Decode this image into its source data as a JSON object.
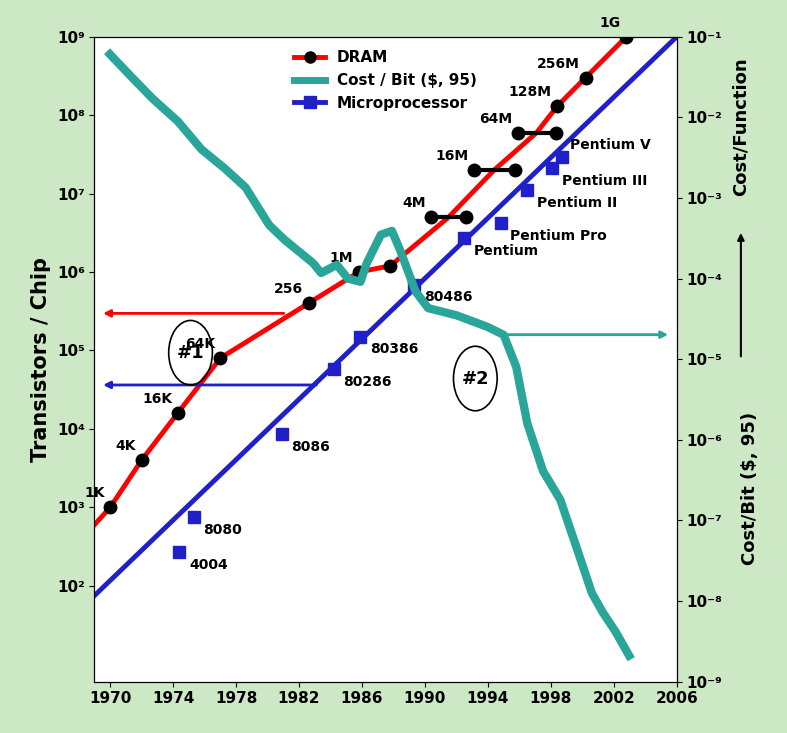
{
  "chart_data": {
    "type": "line",
    "log": "y",
    "grid": false,
    "legend": "upper center",
    "xlim": [
      1969,
      2006
    ],
    "xticks": [
      1970,
      1974,
      1978,
      1982,
      1986,
      1990,
      1994,
      1998,
      2002,
      2006
    ],
    "ylim": [
      6,
      1000000000
    ],
    "yticks": [
      {
        "value": 100,
        "label": "10²"
      },
      {
        "value": 1000,
        "label": "10³"
      },
      {
        "value": 10000,
        "label": "10⁴"
      },
      {
        "value": 100000,
        "label": "10⁵"
      },
      {
        "value": 1000000,
        "label": "10⁶"
      },
      {
        "value": 10000000,
        "label": "10⁷"
      },
      {
        "value": 100000000,
        "label": "10⁸"
      },
      {
        "value": 1000000000,
        "label": "10⁹"
      }
    ],
    "y2lim": [
      1e-09,
      0.1
    ],
    "y2ticks": [
      {
        "value": 1e-09,
        "label": "10⁻⁹"
      },
      {
        "value": 1e-08,
        "label": "10⁻⁸"
      },
      {
        "value": 1e-07,
        "label": "10⁻⁷"
      },
      {
        "value": 1e-06,
        "label": "10⁻⁶"
      },
      {
        "value": 1e-05,
        "label": "10⁻⁵"
      },
      {
        "value": 0.0001,
        "label": "10⁻⁴"
      },
      {
        "value": 0.001,
        "label": "10⁻³"
      },
      {
        "value": 0.01,
        "label": "10⁻²"
      },
      {
        "value": 0.1,
        "label": "10⁻¹"
      }
    ],
    "ylabel": "Transistors / Chip",
    "y2label": "Cost/Bit ($, 95)",
    "y2label_2": "Cost/Function",
    "annotations": [
      "#1",
      "#2"
    ],
    "series": [
      {
        "name": "DRAM",
        "color": "#ff0000",
        "marker": "o",
        "x": [
          1970,
          1972,
          1974.3,
          1977,
          1982.6,
          1985.8,
          1987.8,
          1990.4,
          1992.6,
          1993.1,
          1995.7,
          1995.9,
          1998.3,
          1998.4,
          2000.2,
          2002.8
        ],
        "values": [
          1000,
          4000,
          16000,
          80000,
          400000,
          1000000,
          1200000,
          5000000,
          5000000,
          20000000,
          20000000,
          60000000,
          60000000,
          130000000,
          300000000,
          1000000000
        ],
        "point_labels": [
          "1K",
          "4K",
          "16K",
          "64K",
          "256",
          "1M",
          null,
          "4M",
          null,
          "16M",
          null,
          "64M",
          null,
          "128M",
          "256M",
          "1G"
        ],
        "line_x": [
          1969,
          1970,
          1972,
          1974.3,
          1977,
          1982.6,
          1985.8,
          1987.8,
          1991.5,
          1994.4,
          1997.1,
          1998.4,
          2000.2,
          2002.8
        ],
        "line_values": [
          600,
          1000,
          4000,
          16000,
          80000,
          400000,
          1000000,
          1200000,
          5000000,
          20000000,
          60000000,
          130000000,
          300000000,
          1000000000
        ]
      },
      {
        "name": "Cost / Bit ($, 95)",
        "color": "#2aa59a",
        "axis": "y2",
        "x": [
          1969.8,
          1971.2,
          1972.7,
          1974.3,
          1975.8,
          1977.3,
          1978.6,
          1980.1,
          1981.1,
          1982.9,
          1983.4,
          1984.4,
          1985.1,
          1985.9,
          1986.3,
          1987.2,
          1987.9,
          1988.4,
          1989.4,
          1990.2,
          1992.0,
          1994.0,
          1995.0,
          1995.8,
          1996.5,
          1997.5,
          1998.6,
          1999.6,
          2000.6,
          2001.3,
          2002.1,
          2003.1
        ],
        "values": [
          0.066,
          0.034,
          0.017,
          0.0089,
          0.004,
          0.0023,
          0.00135,
          0.00046,
          0.0003,
          0.000155,
          0.000117,
          0.000148,
          0.0001,
          9.1e-05,
          0.000155,
          0.00035,
          0.00039,
          0.00023,
          6.9e-05,
          4.3e-05,
          3.5e-05,
          2.5e-05,
          2e-05,
          8e-06,
          1.6e-06,
          4.1e-07,
          1.8e-07,
          4.8e-08,
          1.26e-08,
          7.2e-09,
          4.2e-09,
          1.9e-09
        ]
      },
      {
        "name": "Microprocessor",
        "color": "#2020c8",
        "marker": "s",
        "x": [
          1974.4,
          1975.3,
          1980.9,
          1984.2,
          1985.9,
          1989.3,
          1992.5,
          1994.8,
          1996.5,
          1998.1,
          1998.7
        ],
        "values": [
          270,
          750,
          8500,
          58000,
          150000,
          690000,
          2700000,
          4200000,
          11000000,
          21000000,
          29000000
        ],
        "point_labels": [
          "4004",
          "8080",
          "8086",
          "80286",
          "80386",
          "80486",
          "Pentium",
          "Pentium Pro",
          "Pentium II",
          "Pentium III",
          "Pentium V"
        ],
        "line_x": [
          1969,
          2006
        ],
        "line_values": [
          75,
          1000000000
        ]
      }
    ]
  }
}
